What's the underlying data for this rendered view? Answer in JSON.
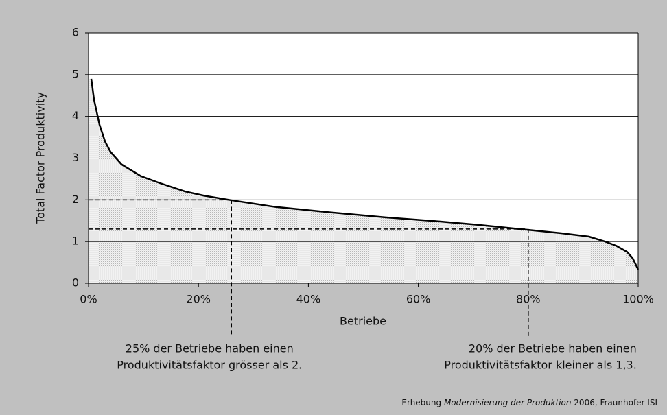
{
  "chart_data": {
    "type": "area",
    "x_label": "Betriebe",
    "y_label": "Total Factor Produktivity",
    "x": [
      0.5,
      1,
      2,
      3,
      4,
      6,
      9.5,
      13,
      17.6,
      21,
      26,
      34,
      44,
      54,
      64,
      71,
      80,
      86,
      91,
      94,
      96,
      98,
      99,
      100
    ],
    "values": [
      4.9,
      4.4,
      3.8,
      3.4,
      3.15,
      2.85,
      2.57,
      2.4,
      2.2,
      2.1,
      1.99,
      1.83,
      1.7,
      1.58,
      1.48,
      1.4,
      1.28,
      1.2,
      1.12,
      1.0,
      0.9,
      0.75,
      0.6,
      0.33
    ],
    "color": "#000000",
    "xlim": [
      0,
      100
    ],
    "xticks": [
      {
        "value": 0,
        "label": "0%"
      },
      {
        "value": 20,
        "label": "20%"
      },
      {
        "value": 40,
        "label": "40%"
      },
      {
        "value": 60,
        "label": "60%"
      },
      {
        "value": 80,
        "label": "80%"
      },
      {
        "value": 100,
        "label": "100%"
      }
    ],
    "ylim": [
      0,
      6
    ],
    "yticks": [
      0,
      1,
      2,
      3,
      4,
      5,
      6
    ],
    "grid": true,
    "annotations": [
      {
        "x": 26,
        "y": 2,
        "lines": [
          "25% der Betriebe haben einen",
          "Produktivitätsfaktor grösser als 2."
        ]
      },
      {
        "x": 80,
        "y": 1.3,
        "lines": [
          "20% der Betriebe haben einen",
          "Produktivitätsfaktor kleiner als 1,3."
        ]
      }
    ],
    "source": [
      "Erhebung ",
      "Modernisierung der Produktion",
      " 2006, Fraunhofer ISI"
    ]
  }
}
